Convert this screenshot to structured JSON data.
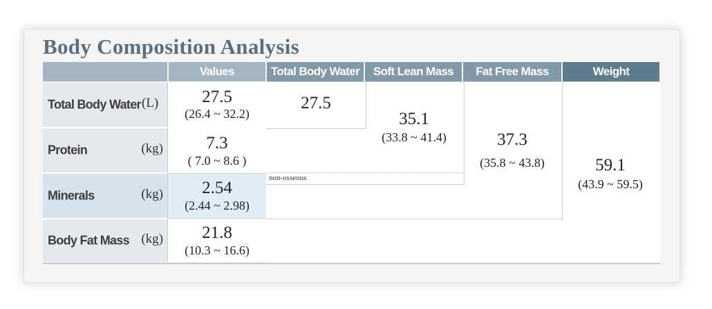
{
  "title": "Body Composition Analysis",
  "headers": {
    "values": "Values",
    "total_body_water": "Total Body Water",
    "soft_lean_mass": "Soft Lean Mass",
    "fat_free_mass": "Fat Free Mass",
    "weight": "Weight"
  },
  "rows": [
    {
      "label": "Total Body Water",
      "unit": "(L)",
      "value": "27.5",
      "range": "(26.4 ~ 32.2)"
    },
    {
      "label": "Protein",
      "unit": "(kg)",
      "value": "7.3",
      "range": "( 7.0 ~ 8.6 )"
    },
    {
      "label": "Minerals",
      "unit": "(kg)",
      "value": "2.54",
      "range": "(2.44 ~ 2.98)"
    },
    {
      "label": "Body Fat Mass",
      "unit": "(kg)",
      "value": "21.8",
      "range": "(10.3 ~ 16.6)"
    }
  ],
  "totals": {
    "total_body_water": {
      "value": "27.5"
    },
    "soft_lean_mass": {
      "value": "35.1",
      "range": "(33.8 ~ 41.4)"
    },
    "fat_free_mass": {
      "value": "37.3",
      "range": "(35.8 ~ 43.8)"
    },
    "weight": {
      "value": "59.1",
      "range": "(43.9 ~ 59.5)"
    }
  },
  "note": "non-osseous",
  "highlight_row": "Minerals",
  "colors": {
    "title": "#5b6f80",
    "header_light": "#a3b4c0",
    "header_mid": "#8399a8",
    "header_dark": "#607c8c",
    "row_label_bg": "#e5e8ec",
    "highlight_bg": "#d6e3ec"
  }
}
